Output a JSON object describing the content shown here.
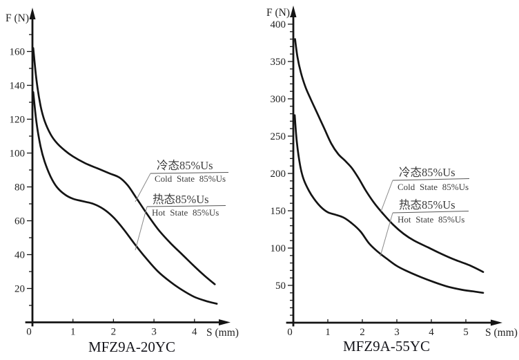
{
  "chart_data": [
    {
      "type": "line",
      "title": "MFZ9A-20YC",
      "xlabel": "S (mm)",
      "ylabel": "F (N)",
      "xlim": [
        0,
        4.75
      ],
      "ylim": [
        0,
        175
      ],
      "x_ticks": [
        0,
        1,
        2,
        3,
        4
      ],
      "y_ticks": [
        20,
        40,
        60,
        80,
        100,
        120,
        140,
        160
      ],
      "y_minor_step": 10,
      "grid": false,
      "legend_position": "annotated-on-plot",
      "series": [
        {
          "name": "cold-state",
          "label_zh": "冷态85%Us",
          "label_en": "Cold State 85%Us",
          "points": [
            [
              0.02,
              162
            ],
            [
              0.1,
              143
            ],
            [
              0.2,
              128
            ],
            [
              0.3,
              119
            ],
            [
              0.45,
              111
            ],
            [
              0.6,
              106
            ],
            [
              0.8,
              101.5
            ],
            [
              1,
              98
            ],
            [
              1.3,
              94
            ],
            [
              1.6,
              91
            ],
            [
              1.9,
              88
            ],
            [
              2.15,
              85.5
            ],
            [
              2.35,
              81
            ],
            [
              2.55,
              74
            ],
            [
              2.8,
              65
            ],
            [
              3.1,
              55
            ],
            [
              3.4,
              47
            ],
            [
              3.7,
              40
            ],
            [
              4,
              33
            ],
            [
              4.25,
              27.5
            ],
            [
              4.5,
              22.5
            ]
          ]
        },
        {
          "name": "hot-state",
          "label_zh": "热态85%Us",
          "label_en": "Hot State 85%Us",
          "points": [
            [
              0.02,
              136
            ],
            [
              0.1,
              118
            ],
            [
              0.2,
              104
            ],
            [
              0.3,
              95
            ],
            [
              0.45,
              86
            ],
            [
              0.6,
              80
            ],
            [
              0.8,
              75.5
            ],
            [
              1,
              73
            ],
            [
              1.25,
              71.5
            ],
            [
              1.5,
              70
            ],
            [
              1.75,
              67
            ],
            [
              2,
              62
            ],
            [
              2.25,
              55
            ],
            [
              2.5,
              47
            ],
            [
              2.8,
              38
            ],
            [
              3.1,
              30
            ],
            [
              3.4,
              24
            ],
            [
              3.7,
              19
            ],
            [
              4,
              15
            ],
            [
              4.3,
              12.5
            ],
            [
              4.55,
              11
            ]
          ]
        }
      ]
    },
    {
      "type": "line",
      "title": "MFZ9A-55YC",
      "xlabel": "S (mm)",
      "ylabel": "F (N)",
      "xlim": [
        0,
        5.75
      ],
      "ylim": [
        0,
        425
      ],
      "x_ticks": [
        0,
        1,
        2,
        3,
        4,
        5
      ],
      "y_ticks": [
        50,
        100,
        150,
        200,
        250,
        300,
        350,
        400
      ],
      "y_minor_step": 10,
      "grid": false,
      "legend_position": "annotated-on-plot",
      "series": [
        {
          "name": "cold-state",
          "label_zh": "冷态85%Us",
          "label_en": "Cold State 85%Us",
          "points": [
            [
              0.05,
              380
            ],
            [
              0.12,
              356
            ],
            [
              0.22,
              335
            ],
            [
              0.35,
              316
            ],
            [
              0.5,
              300
            ],
            [
              0.7,
              280
            ],
            [
              0.9,
              260
            ],
            [
              1.1,
              240
            ],
            [
              1.3,
              226
            ],
            [
              1.5,
              217
            ],
            [
              1.7,
              207
            ],
            [
              1.9,
              193
            ],
            [
              2.1,
              177
            ],
            [
              2.35,
              160
            ],
            [
              2.6,
              146
            ],
            [
              2.9,
              131
            ],
            [
              3.2,
              119
            ],
            [
              3.5,
              110
            ],
            [
              3.9,
              101
            ],
            [
              4.3,
              92
            ],
            [
              4.7,
              84
            ],
            [
              5.1,
              77
            ],
            [
              5.5,
              68
            ]
          ]
        },
        {
          "name": "hot-state",
          "label_zh": "热态85%Us",
          "label_en": "Hot State 85%Us",
          "points": [
            [
              0.04,
              278
            ],
            [
              0.1,
              243
            ],
            [
              0.2,
              210
            ],
            [
              0.3,
              192
            ],
            [
              0.45,
              177
            ],
            [
              0.6,
              166
            ],
            [
              0.8,
              155
            ],
            [
              1,
              148
            ],
            [
              1.2,
              145
            ],
            [
              1.45,
              141
            ],
            [
              1.7,
              133
            ],
            [
              1.95,
              122
            ],
            [
              2.2,
              106
            ],
            [
              2.45,
              95
            ],
            [
              2.7,
              86
            ],
            [
              3,
              76
            ],
            [
              3.3,
              69
            ],
            [
              3.7,
              61
            ],
            [
              4.1,
              54
            ],
            [
              4.5,
              48
            ],
            [
              4.9,
              44
            ],
            [
              5.2,
              42
            ],
            [
              5.5,
              40
            ]
          ]
        }
      ]
    }
  ],
  "colors": {
    "background": "#ffffff",
    "curve": "#141414",
    "axis": "#141414",
    "tick_label": "#222222",
    "title": "#16161c",
    "annotation_text": "#3c3c3c",
    "annotation_line": "#555555",
    "leader_line": "#888888"
  }
}
